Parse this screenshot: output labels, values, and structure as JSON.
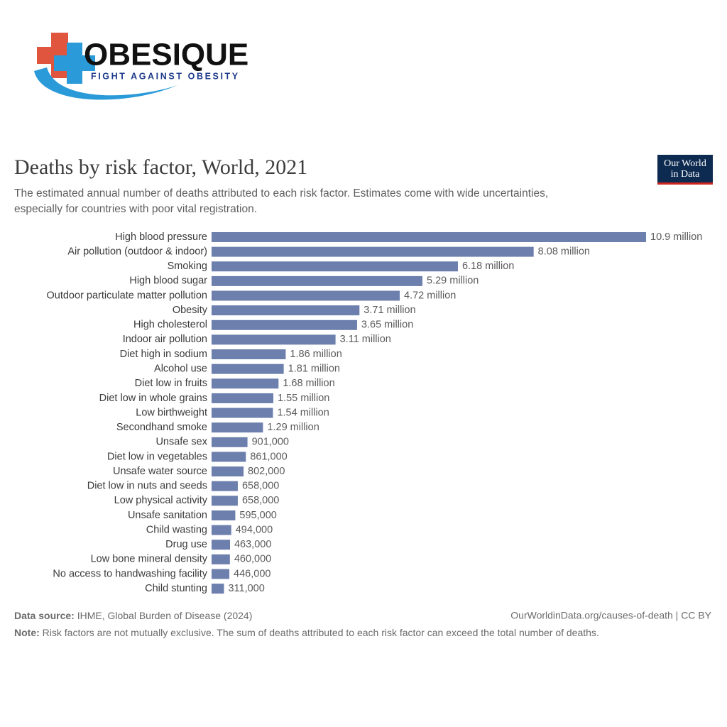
{
  "logo": {
    "name": "OBESIQUE",
    "tagline": "FIGHT AGAINST OBESITY"
  },
  "chart_data": {
    "type": "bar",
    "orientation": "horizontal",
    "title": "Deaths by risk factor, World, 2021",
    "subtitle": [
      "The estimated annual number of deaths attributed to each risk factor. Estimates come with wide uncertainties,",
      "especially for countries with poor vital registration."
    ],
    "branding": [
      "Our World",
      "in Data"
    ],
    "color": "#6d7fad",
    "categories": [
      "High blood pressure",
      "Air pollution (outdoor & indoor)",
      "Smoking",
      "High blood sugar",
      "Outdoor particulate matter pollution",
      "Obesity",
      "High cholesterol",
      "Indoor air pollution",
      "Diet high in sodium",
      "Alcohol use",
      "Diet low in fruits",
      "Diet low in whole grains",
      "Low birthweight",
      "Secondhand smoke",
      "Unsafe sex",
      "Diet low in vegetables",
      "Unsafe water source",
      "Diet low in nuts and seeds",
      "Low physical activity",
      "Unsafe sanitation",
      "Child wasting",
      "Drug use",
      "Low bone mineral density",
      "No access to handwashing facility",
      "Child stunting"
    ],
    "values": [
      10900000,
      8080000,
      6180000,
      5290000,
      4720000,
      3710000,
      3650000,
      3110000,
      1860000,
      1810000,
      1680000,
      1550000,
      1540000,
      1290000,
      901000,
      861000,
      802000,
      658000,
      658000,
      595000,
      494000,
      463000,
      460000,
      446000,
      311000
    ],
    "value_labels": [
      "10.9 million",
      "8.08 million",
      "6.18 million",
      "5.29 million",
      "4.72 million",
      "3.71 million",
      "3.65 million",
      "3.11 million",
      "1.86 million",
      "1.81 million",
      "1.68 million",
      "1.55 million",
      "1.54 million",
      "1.29 million",
      "901,000",
      "861,000",
      "802,000",
      "658,000",
      "658,000",
      "595,000",
      "494,000",
      "463,000",
      "460,000",
      "446,000",
      "311,000"
    ],
    "source_label": "Data source:",
    "source": "IHME, Global Burden of Disease (2024)",
    "url": "OurWorldinData.org/causes-of-death | CC BY",
    "note_label": "Note:",
    "note": "Risk factors are not mutually exclusive. The sum of deaths attributed to each risk factor can exceed the total number of deaths."
  }
}
